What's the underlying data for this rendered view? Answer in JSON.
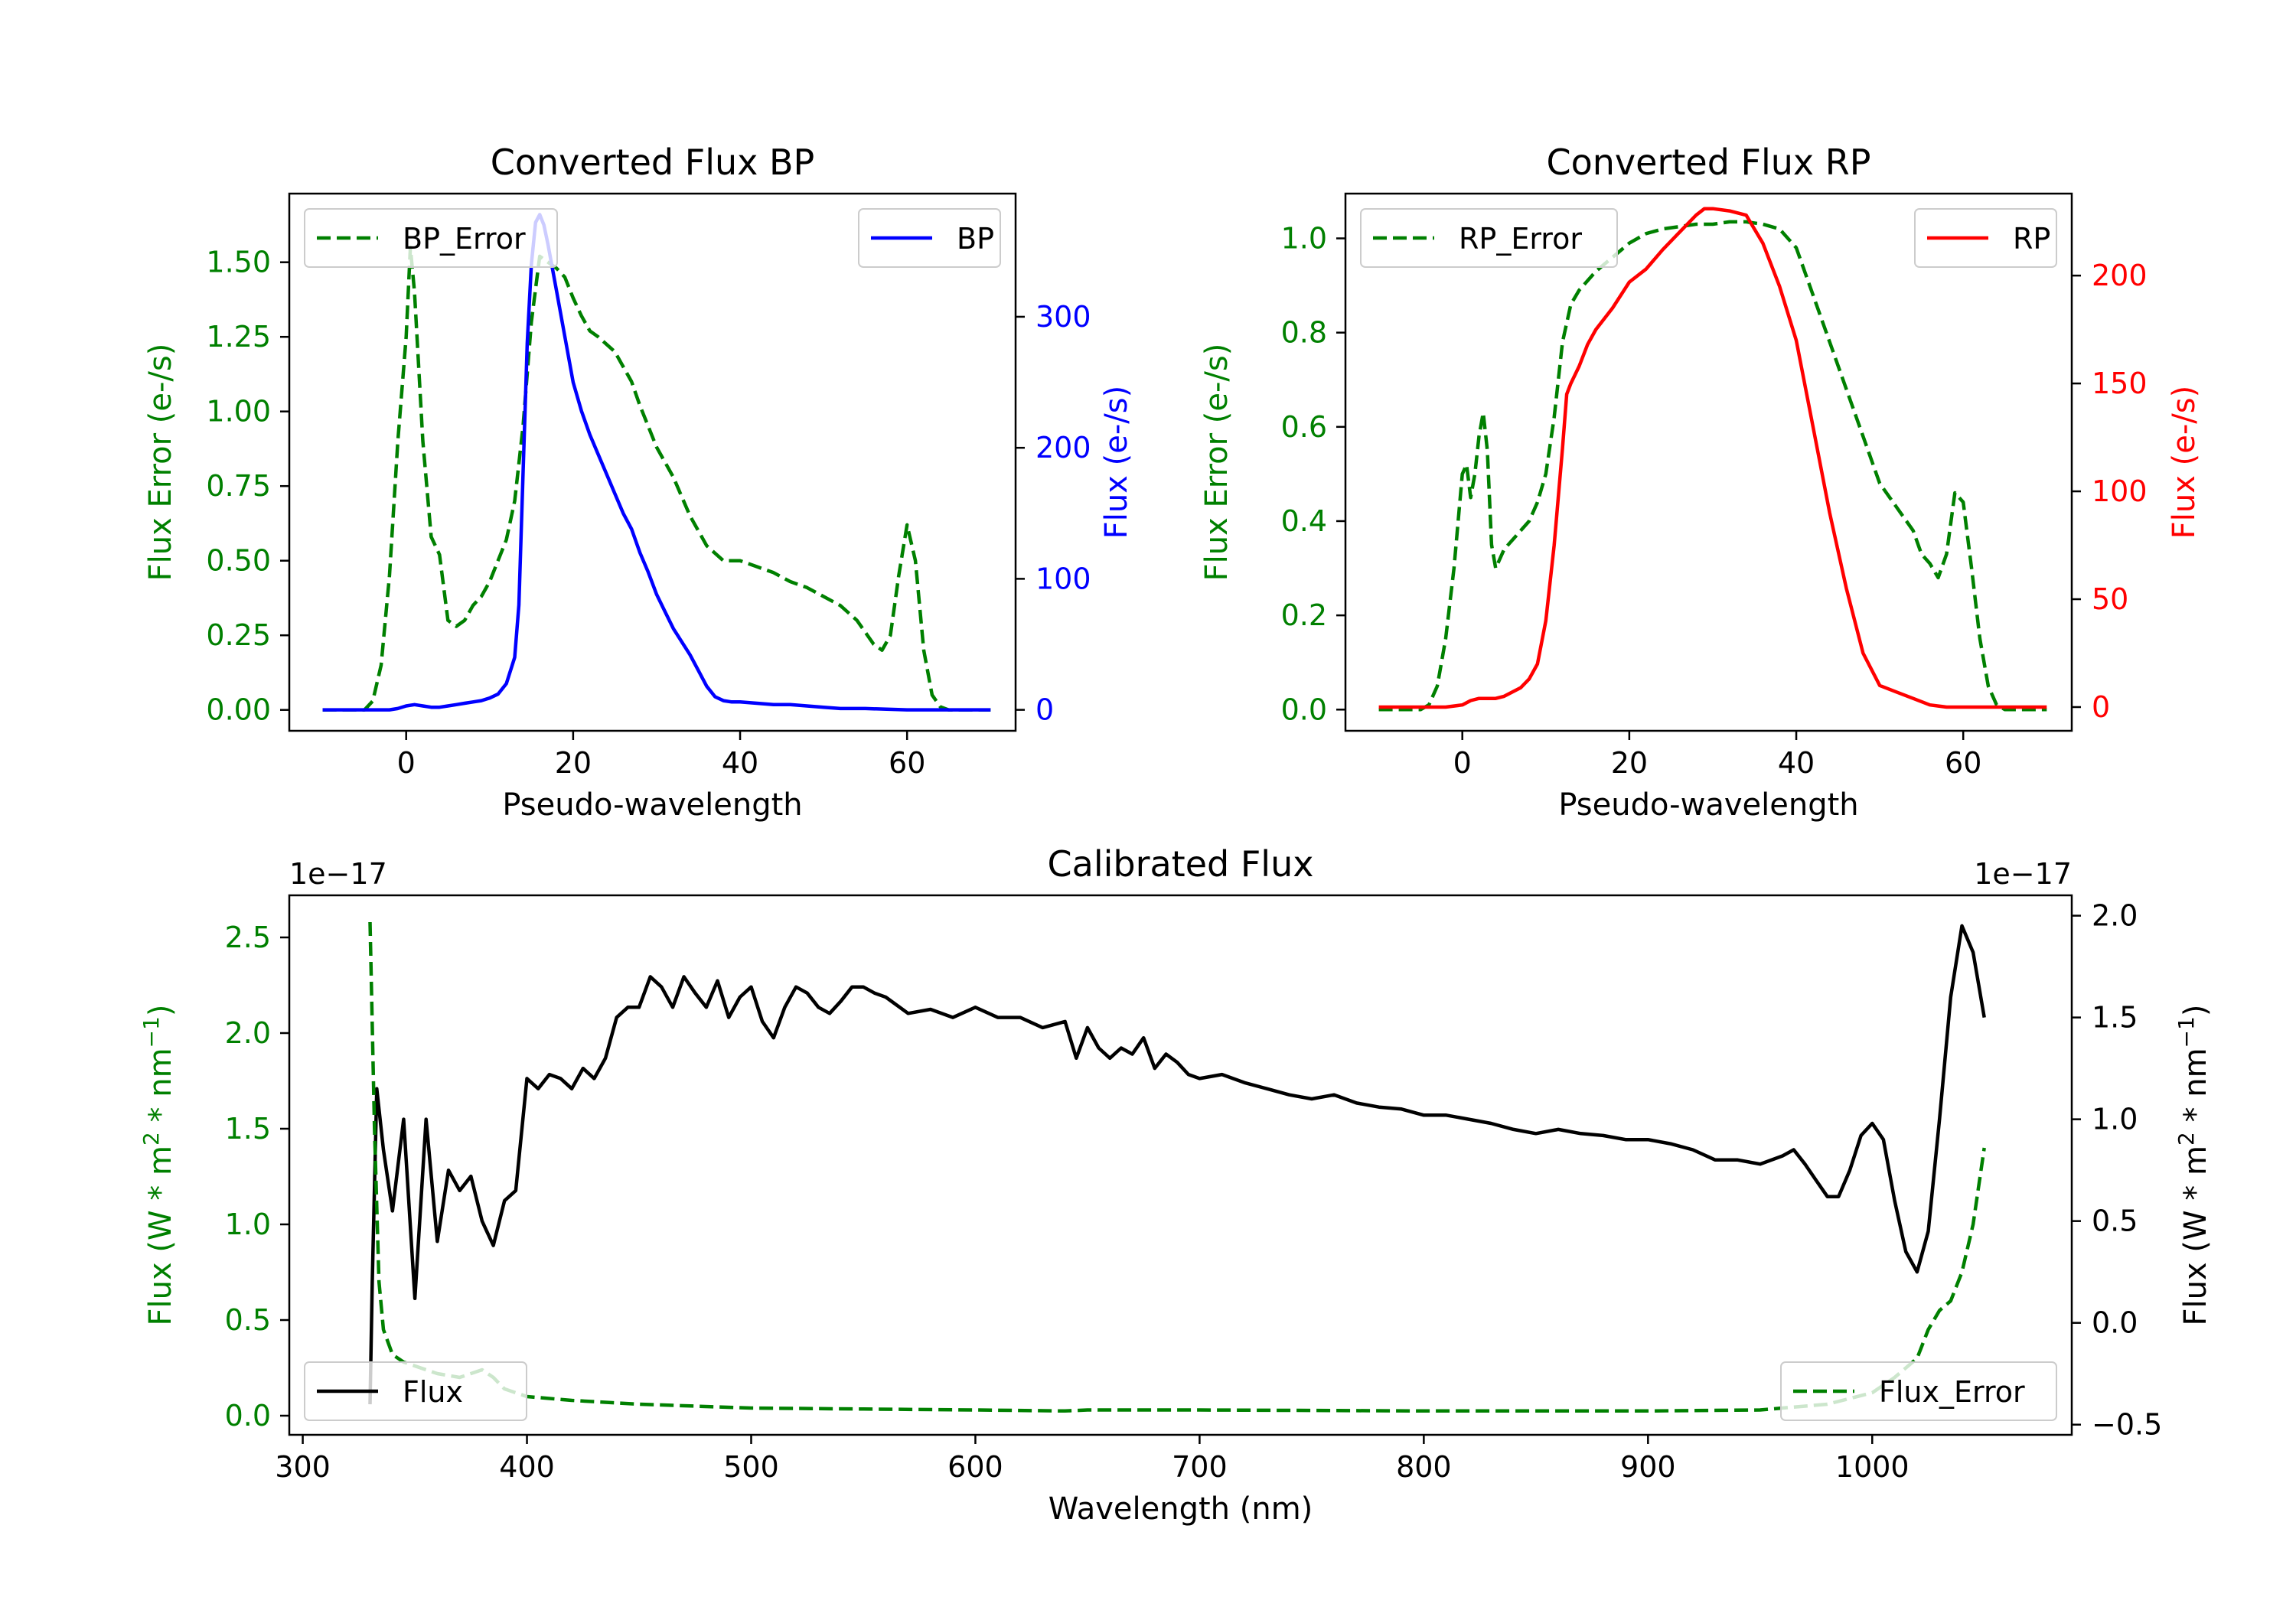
{
  "colors": {
    "green": "#008000",
    "blue": "#0000ff",
    "red": "#ff0000",
    "black": "#000000"
  },
  "chart_data": [
    {
      "id": "bp",
      "type": "line",
      "title": "Converted Flux BP",
      "xlabel": "Pseudo-wavelength",
      "ylabel_left": "Flux Error (e-/s)",
      "ylabel_right": "Flux (e-/s)",
      "xlim": [
        -14,
        73
      ],
      "ylim_left": [
        -0.07,
        1.73
      ],
      "ylim_right": [
        -16,
        394
      ],
      "xticks": [
        0,
        20,
        40,
        60
      ],
      "yticks_left": [
        0.0,
        0.25,
        0.5,
        0.75,
        1.0,
        1.25,
        1.5
      ],
      "yticks_left_labels": [
        "0.00",
        "0.25",
        "0.50",
        "0.75",
        "1.00",
        "1.25",
        "1.50"
      ],
      "yticks_right": [
        0,
        100,
        200,
        300
      ],
      "yticks_right_labels": [
        "0",
        "100",
        "200",
        "300"
      ],
      "legend_left": "BP_Error",
      "legend_right": "BP",
      "series": [
        {
          "name": "BP_Error",
          "axis": "left",
          "style": "dashed",
          "color": "green",
          "x": [
            -10,
            -5,
            -4,
            -3,
            -2,
            -1,
            0,
            0.5,
            1,
            2,
            3,
            4,
            5,
            6,
            7,
            8,
            9,
            10,
            11,
            12,
            13,
            14,
            15,
            16,
            17,
            18,
            19,
            20,
            21,
            22,
            23,
            25,
            27,
            28,
            30,
            32,
            34,
            36,
            38,
            40,
            42,
            44,
            46,
            48,
            50,
            52,
            54,
            56,
            57,
            58,
            59,
            60,
            61,
            62,
            63,
            64,
            65,
            70
          ],
          "y": [
            0.0,
            0.0,
            0.03,
            0.15,
            0.45,
            0.9,
            1.25,
            1.55,
            1.4,
            0.9,
            0.58,
            0.52,
            0.3,
            0.28,
            0.3,
            0.35,
            0.38,
            0.43,
            0.5,
            0.57,
            0.7,
            0.95,
            1.3,
            1.52,
            1.5,
            1.48,
            1.45,
            1.38,
            1.32,
            1.27,
            1.25,
            1.2,
            1.1,
            1.02,
            0.88,
            0.78,
            0.65,
            0.55,
            0.5,
            0.5,
            0.48,
            0.46,
            0.43,
            0.41,
            0.38,
            0.35,
            0.3,
            0.22,
            0.2,
            0.25,
            0.45,
            0.62,
            0.5,
            0.2,
            0.05,
            0.01,
            0.0,
            0.0
          ]
        },
        {
          "name": "BP",
          "axis": "right",
          "style": "solid",
          "color": "blue",
          "x": [
            -10,
            -2,
            -1,
            0,
            1,
            2,
            3,
            4,
            5,
            6,
            7,
            8,
            9,
            10,
            11,
            12,
            13,
            13.5,
            14,
            14.5,
            15,
            15.5,
            16,
            16.5,
            17,
            18,
            19,
            20,
            21,
            22,
            23,
            24,
            25,
            26,
            27,
            28,
            29,
            30,
            31,
            32,
            33,
            34,
            35,
            36,
            37,
            38,
            39,
            40,
            42,
            44,
            46,
            48,
            50,
            52,
            55,
            60,
            65,
            70
          ],
          "y": [
            0,
            0,
            1,
            3,
            4,
            3,
            2,
            2,
            3,
            4,
            5,
            6,
            7,
            9,
            12,
            20,
            40,
            80,
            180,
            280,
            340,
            372,
            378,
            370,
            355,
            320,
            285,
            250,
            228,
            210,
            195,
            180,
            165,
            150,
            138,
            120,
            105,
            88,
            75,
            62,
            52,
            42,
            30,
            18,
            10,
            7,
            6,
            6,
            5,
            4,
            4,
            3,
            2,
            1,
            1,
            0,
            0,
            0
          ]
        }
      ]
    },
    {
      "id": "rp",
      "type": "line",
      "title": "Converted Flux RP",
      "xlabel": "Pseudo-wavelength",
      "ylabel_left": "Flux Error (e-/s)",
      "ylabel_right": "Flux (e-/s)",
      "xlim": [
        -14,
        73
      ],
      "ylim_left": [
        -0.045,
        1.095
      ],
      "ylim_right": [
        -11,
        238
      ],
      "xticks": [
        0,
        20,
        40,
        60
      ],
      "yticks_left": [
        0.0,
        0.2,
        0.4,
        0.6,
        0.8,
        1.0
      ],
      "yticks_left_labels": [
        "0.0",
        "0.2",
        "0.4",
        "0.6",
        "0.8",
        "1.0"
      ],
      "yticks_right": [
        0,
        50,
        100,
        150,
        200
      ],
      "yticks_right_labels": [
        "0",
        "50",
        "100",
        "150",
        "200"
      ],
      "legend_left": "RP_Error",
      "legend_right": "RP",
      "series": [
        {
          "name": "RP_Error",
          "axis": "left",
          "style": "dashed",
          "color": "green",
          "x": [
            -10,
            -5,
            -4,
            -3,
            -2,
            -1,
            0,
            0.5,
            1,
            1.5,
            2,
            2.5,
            3,
            3.5,
            4,
            5,
            6,
            7,
            8,
            9,
            10,
            11,
            12,
            13,
            14,
            16,
            18,
            20,
            22,
            24,
            26,
            28,
            30,
            32,
            34,
            36,
            38,
            40,
            42,
            44,
            46,
            48,
            50,
            52,
            54,
            55,
            56,
            57,
            58,
            59,
            60,
            61,
            62,
            63,
            64,
            65,
            70
          ],
          "y": [
            0.0,
            0.0,
            0.01,
            0.05,
            0.15,
            0.3,
            0.5,
            0.52,
            0.45,
            0.5,
            0.58,
            0.63,
            0.55,
            0.35,
            0.3,
            0.34,
            0.36,
            0.38,
            0.4,
            0.44,
            0.5,
            0.62,
            0.78,
            0.86,
            0.89,
            0.93,
            0.96,
            0.99,
            1.01,
            1.02,
            1.025,
            1.03,
            1.03,
            1.035,
            1.035,
            1.03,
            1.02,
            0.98,
            0.88,
            0.78,
            0.68,
            0.58,
            0.48,
            0.43,
            0.38,
            0.33,
            0.31,
            0.28,
            0.33,
            0.46,
            0.44,
            0.3,
            0.15,
            0.05,
            0.01,
            0.0,
            0.0
          ]
        },
        {
          "name": "RP",
          "axis": "right",
          "style": "solid",
          "color": "red",
          "x": [
            -10,
            -2,
            0,
            1,
            2,
            3,
            4,
            5,
            6,
            7,
            8,
            9,
            10,
            11,
            12,
            12.5,
            13,
            14,
            15,
            16,
            18,
            20,
            22,
            24,
            26,
            28,
            29,
            30,
            32,
            34,
            36,
            38,
            40,
            42,
            44,
            46,
            48,
            50,
            52,
            54,
            56,
            58,
            60,
            65,
            70
          ],
          "y": [
            0,
            0,
            1,
            3,
            4,
            4,
            4,
            5,
            7,
            9,
            13,
            20,
            40,
            75,
            120,
            145,
            150,
            158,
            168,
            175,
            185,
            197,
            203,
            212,
            220,
            228,
            231,
            231,
            230,
            228,
            215,
            195,
            170,
            130,
            90,
            55,
            25,
            10,
            7,
            4,
            1,
            0,
            0,
            0,
            0
          ]
        }
      ]
    },
    {
      "id": "cal",
      "type": "line",
      "title": "Calibrated Flux",
      "xlabel": "Wavelength (nm)",
      "ylabel_left": "Flux (W * m^2 * nm^-1)",
      "ylabel_right": "Flux (W * m^2 * nm^-1)",
      "offset_left": "1e−17",
      "offset_right": "1e−17",
      "xlim": [
        294,
        1089
      ],
      "ylim_left": [
        -0.1,
        2.72
      ],
      "ylim_right": [
        -0.55,
        2.1
      ],
      "xticks": [
        300,
        400,
        500,
        600,
        700,
        800,
        900,
        1000
      ],
      "yticks_left": [
        0.0,
        0.5,
        1.0,
        1.5,
        2.0,
        2.5
      ],
      "yticks_left_labels": [
        "0.0",
        "0.5",
        "1.0",
        "1.5",
        "2.0",
        "2.5"
      ],
      "yticks_right": [
        -0.5,
        0.0,
        0.5,
        1.0,
        1.5,
        2.0
      ],
      "yticks_right_labels": [
        "−0.5",
        "0.0",
        "0.5",
        "1.0",
        "1.5",
        "2.0"
      ],
      "legend_left": "Flux",
      "legend_right": "Flux_Error",
      "series": [
        {
          "name": "Flux",
          "axis": "right",
          "style": "solid",
          "color": "black",
          "x": [
            330,
            331,
            333,
            336,
            340,
            345,
            350,
            355,
            360,
            365,
            370,
            375,
            380,
            385,
            390,
            395,
            400,
            405,
            410,
            415,
            420,
            425,
            430,
            435,
            440,
            445,
            450,
            455,
            460,
            465,
            470,
            475,
            480,
            485,
            490,
            495,
            500,
            505,
            510,
            515,
            520,
            525,
            530,
            535,
            540,
            545,
            550,
            555,
            560,
            570,
            580,
            590,
            600,
            610,
            620,
            630,
            640,
            645,
            650,
            655,
            660,
            665,
            670,
            675,
            680,
            685,
            690,
            695,
            700,
            710,
            720,
            730,
            740,
            750,
            760,
            770,
            780,
            790,
            800,
            810,
            820,
            830,
            840,
            850,
            860,
            870,
            880,
            890,
            900,
            910,
            920,
            930,
            940,
            950,
            960,
            965,
            970,
            975,
            980,
            985,
            990,
            995,
            1000,
            1005,
            1010,
            1015,
            1020,
            1025,
            1030,
            1035,
            1040,
            1045,
            1050
          ],
          "y": [
            -0.4,
            0.2,
            1.15,
            0.85,
            0.55,
            1.0,
            0.12,
            1.0,
            0.4,
            0.75,
            0.65,
            0.72,
            0.5,
            0.38,
            0.6,
            0.65,
            1.2,
            1.15,
            1.22,
            1.2,
            1.15,
            1.25,
            1.2,
            1.3,
            1.5,
            1.55,
            1.55,
            1.7,
            1.65,
            1.55,
            1.7,
            1.62,
            1.55,
            1.68,
            1.5,
            1.6,
            1.65,
            1.48,
            1.4,
            1.55,
            1.65,
            1.62,
            1.55,
            1.52,
            1.58,
            1.65,
            1.65,
            1.62,
            1.6,
            1.52,
            1.54,
            1.5,
            1.55,
            1.5,
            1.5,
            1.45,
            1.48,
            1.3,
            1.45,
            1.35,
            1.3,
            1.35,
            1.32,
            1.4,
            1.25,
            1.32,
            1.28,
            1.22,
            1.2,
            1.22,
            1.18,
            1.15,
            1.12,
            1.1,
            1.12,
            1.08,
            1.06,
            1.05,
            1.02,
            1.02,
            1.0,
            0.98,
            0.95,
            0.93,
            0.95,
            0.93,
            0.92,
            0.9,
            0.9,
            0.88,
            0.85,
            0.8,
            0.8,
            0.78,
            0.82,
            0.85,
            0.78,
            0.7,
            0.62,
            0.62,
            0.75,
            0.92,
            0.98,
            0.9,
            0.6,
            0.35,
            0.25,
            0.45,
            1.0,
            1.6,
            1.95,
            1.82,
            1.5
          ]
        },
        {
          "name": "Flux_Error",
          "axis": "left",
          "style": "dashed",
          "color": "green",
          "x": [
            330,
            332,
            334,
            336,
            340,
            345,
            350,
            360,
            370,
            380,
            385,
            390,
            400,
            420,
            450,
            500,
            550,
            600,
            640,
            650,
            700,
            800,
            900,
            950,
            980,
            1000,
            1010,
            1020,
            1025,
            1030,
            1035,
            1040,
            1045,
            1050
          ],
          "y": [
            2.58,
            1.5,
            0.7,
            0.45,
            0.32,
            0.28,
            0.26,
            0.22,
            0.2,
            0.24,
            0.2,
            0.14,
            0.1,
            0.08,
            0.06,
            0.04,
            0.035,
            0.03,
            0.025,
            0.03,
            0.03,
            0.025,
            0.025,
            0.03,
            0.06,
            0.12,
            0.2,
            0.3,
            0.45,
            0.55,
            0.6,
            0.75,
            1.0,
            1.4
          ]
        }
      ]
    }
  ]
}
